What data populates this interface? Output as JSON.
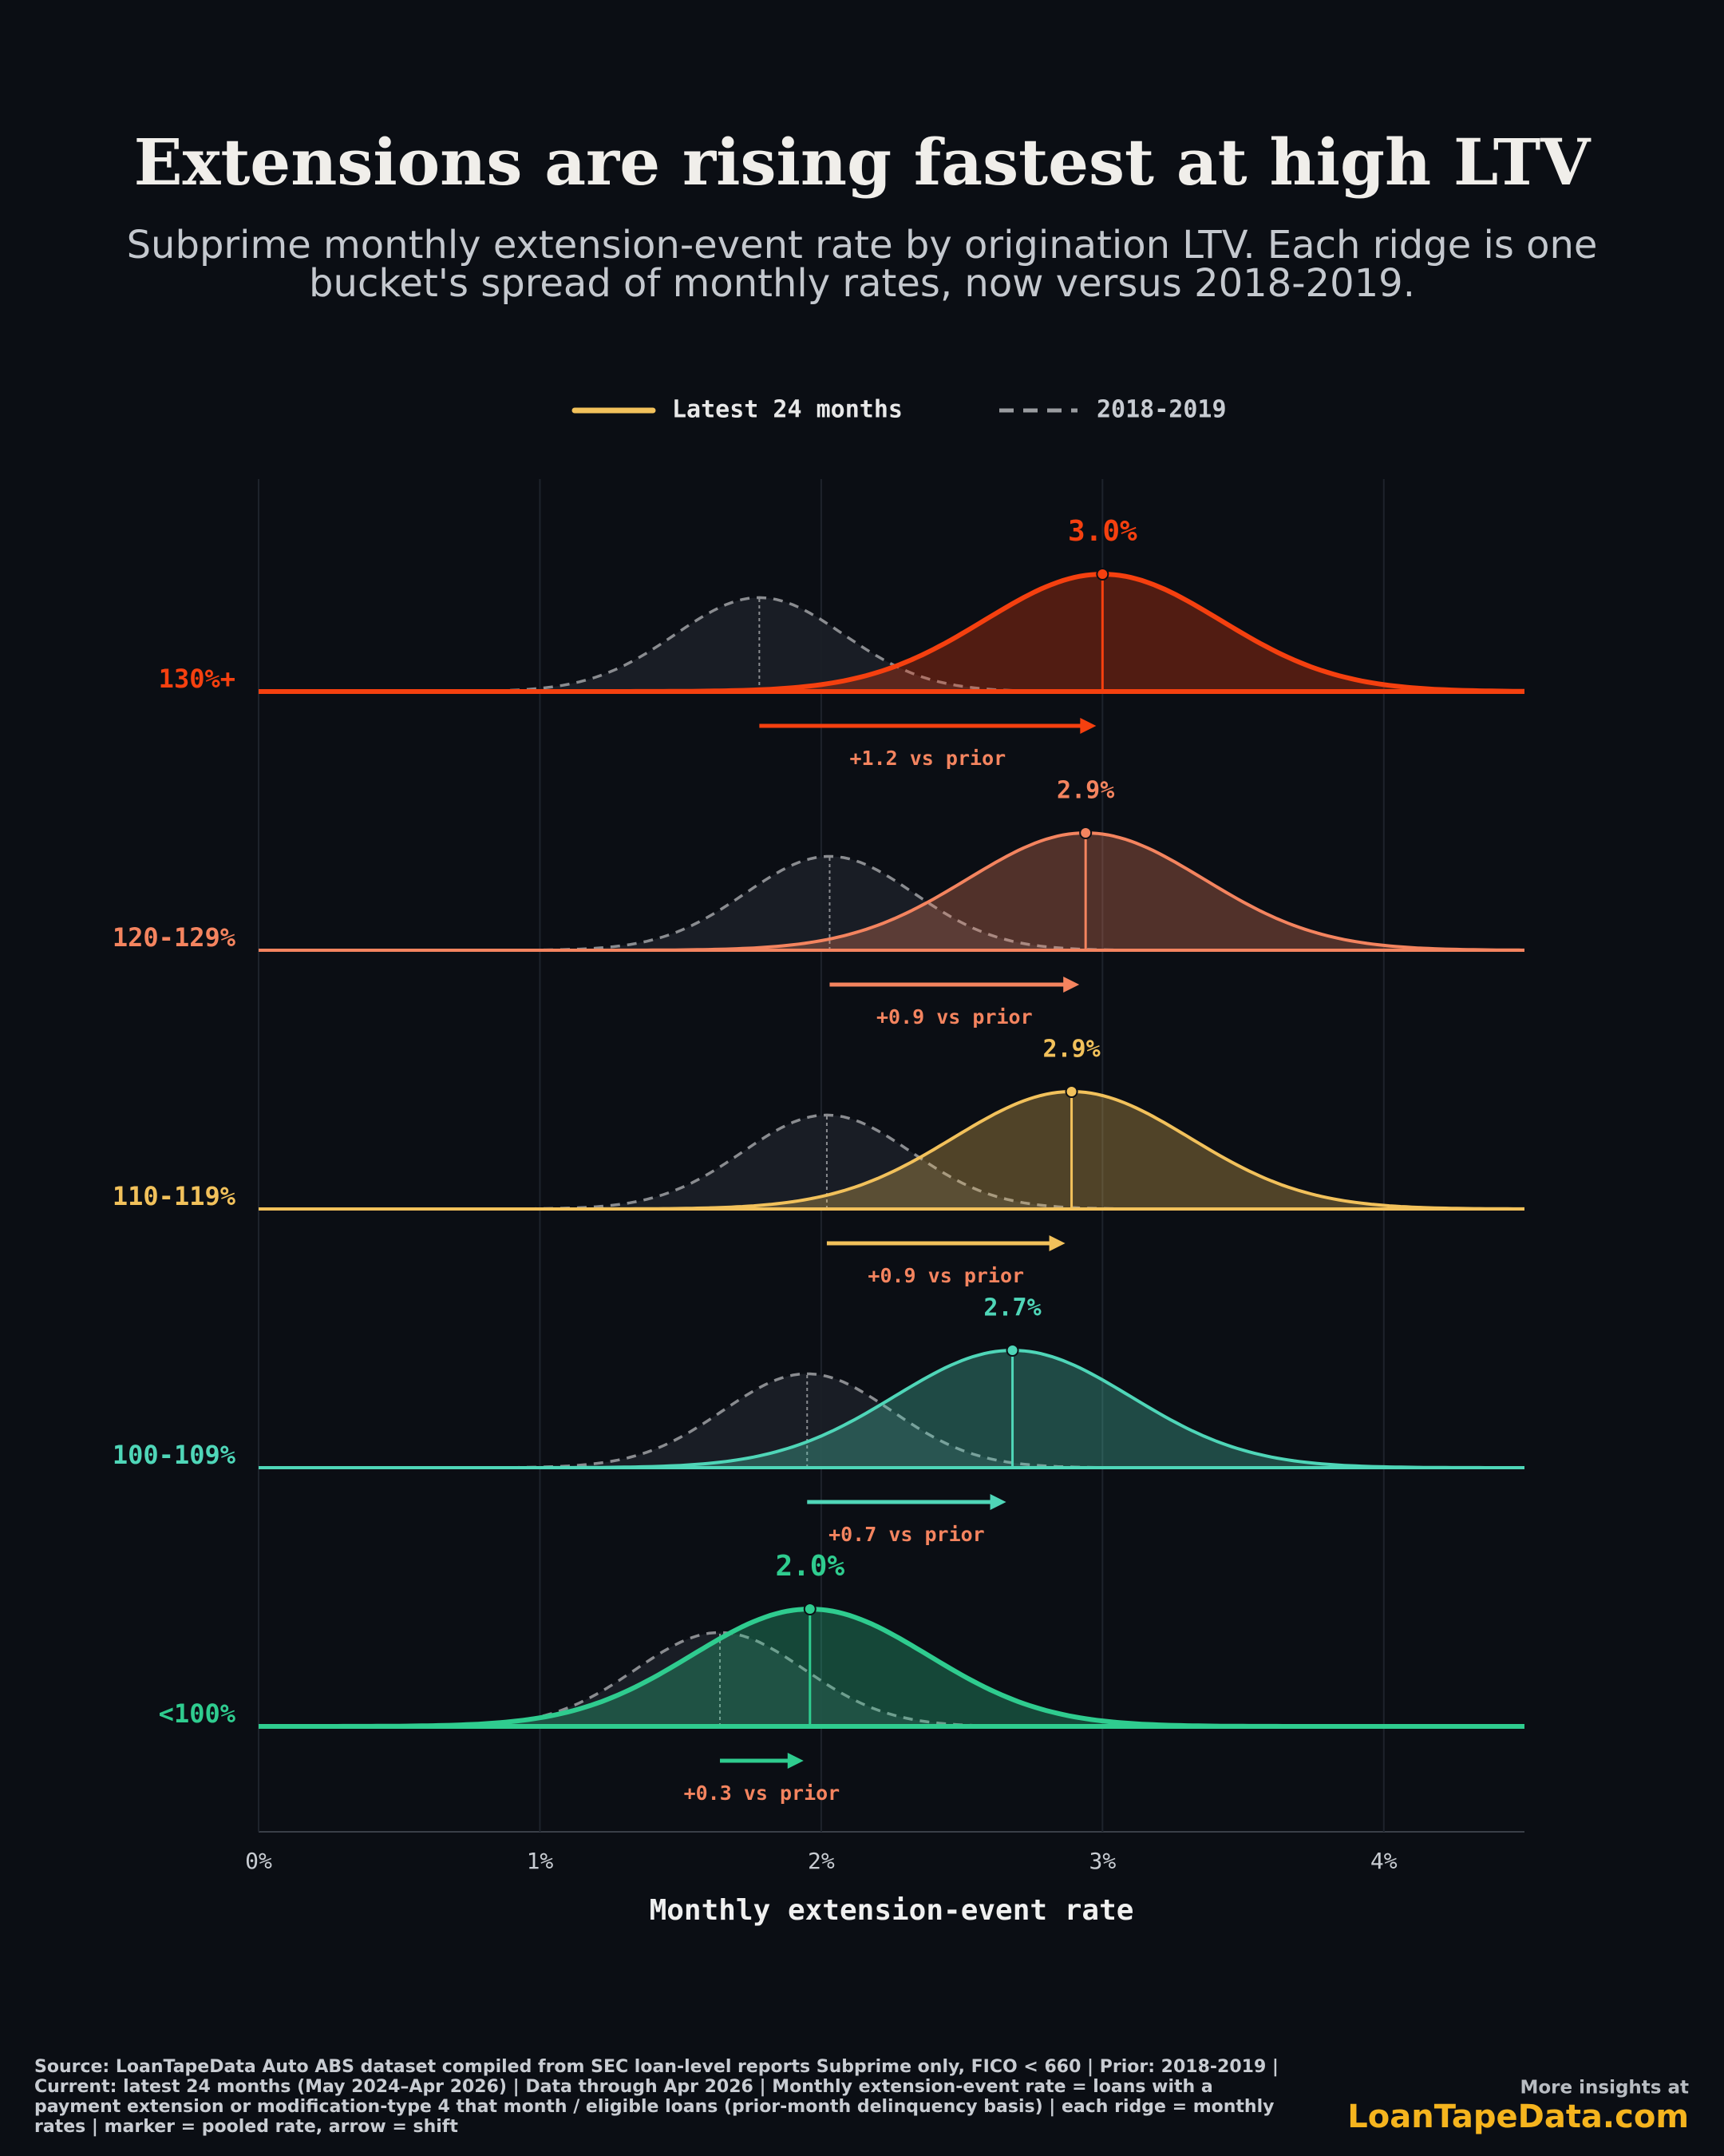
{
  "chart_data": {
    "type": "ridgeline",
    "title": "Extensions are rising fastest at high LTV",
    "subtitle": [
      "Subprime monthly extension-event rate by origination LTV. Each ridge is one",
      "bucket's spread of monthly rates, now versus 2018-2019."
    ],
    "legend": [
      "Latest 24 months",
      "2018-2019"
    ],
    "x_label": "Monthly extension-event rate",
    "xlim": [
      0,
      4.5
    ],
    "xticks": [
      {
        "value": 0,
        "label": "0%"
      },
      {
        "value": 1,
        "label": "1%"
      },
      {
        "value": 2,
        "label": "2%"
      },
      {
        "value": 3,
        "label": "3%"
      },
      {
        "value": 4,
        "label": "4%"
      }
    ],
    "grid": true,
    "series": [
      {
        "name": "130%+",
        "color": "#f5400f",
        "value": 3.0,
        "value_label": "3.0%",
        "prior": 1.78,
        "shift_label": "+1.2 vs prior"
      },
      {
        "name": "120-129%",
        "color": "#f4845f",
        "value": 2.94,
        "value_label": "2.9%",
        "prior": 2.03,
        "shift_label": "+0.9 vs prior"
      },
      {
        "name": "110-119%",
        "color": "#f2c15b",
        "value": 2.89,
        "value_label": "2.9%",
        "prior": 2.02,
        "shift_label": "+0.9 vs prior"
      },
      {
        "name": "100-109%",
        "color": "#4fd6b8",
        "value": 2.68,
        "value_label": "2.7%",
        "prior": 1.95,
        "shift_label": "+0.7 vs prior"
      },
      {
        "name": "<100%",
        "color": "#2fcc8f",
        "value": 1.96,
        "value_label": "2.0%",
        "prior": 1.64,
        "shift_label": "+0.3 vs prior"
      }
    ],
    "footer": "Source: LoanTapeData Auto ABS dataset compiled from SEC loan-level reports Subprime only, FICO < 660 | Prior: 2018-2019 | Current: latest 24 months (May 2024–Apr 2026) | Data through Apr 2026 | Monthly extension-event rate = loans with a payment extension or modification-type 4 that month / eligible loans (prior-month delinquency basis) | each ridge = monthly rates | marker = pooled rate, arrow = shift",
    "promo": "More insights at",
    "brand": "LoanTapeData.com"
  }
}
